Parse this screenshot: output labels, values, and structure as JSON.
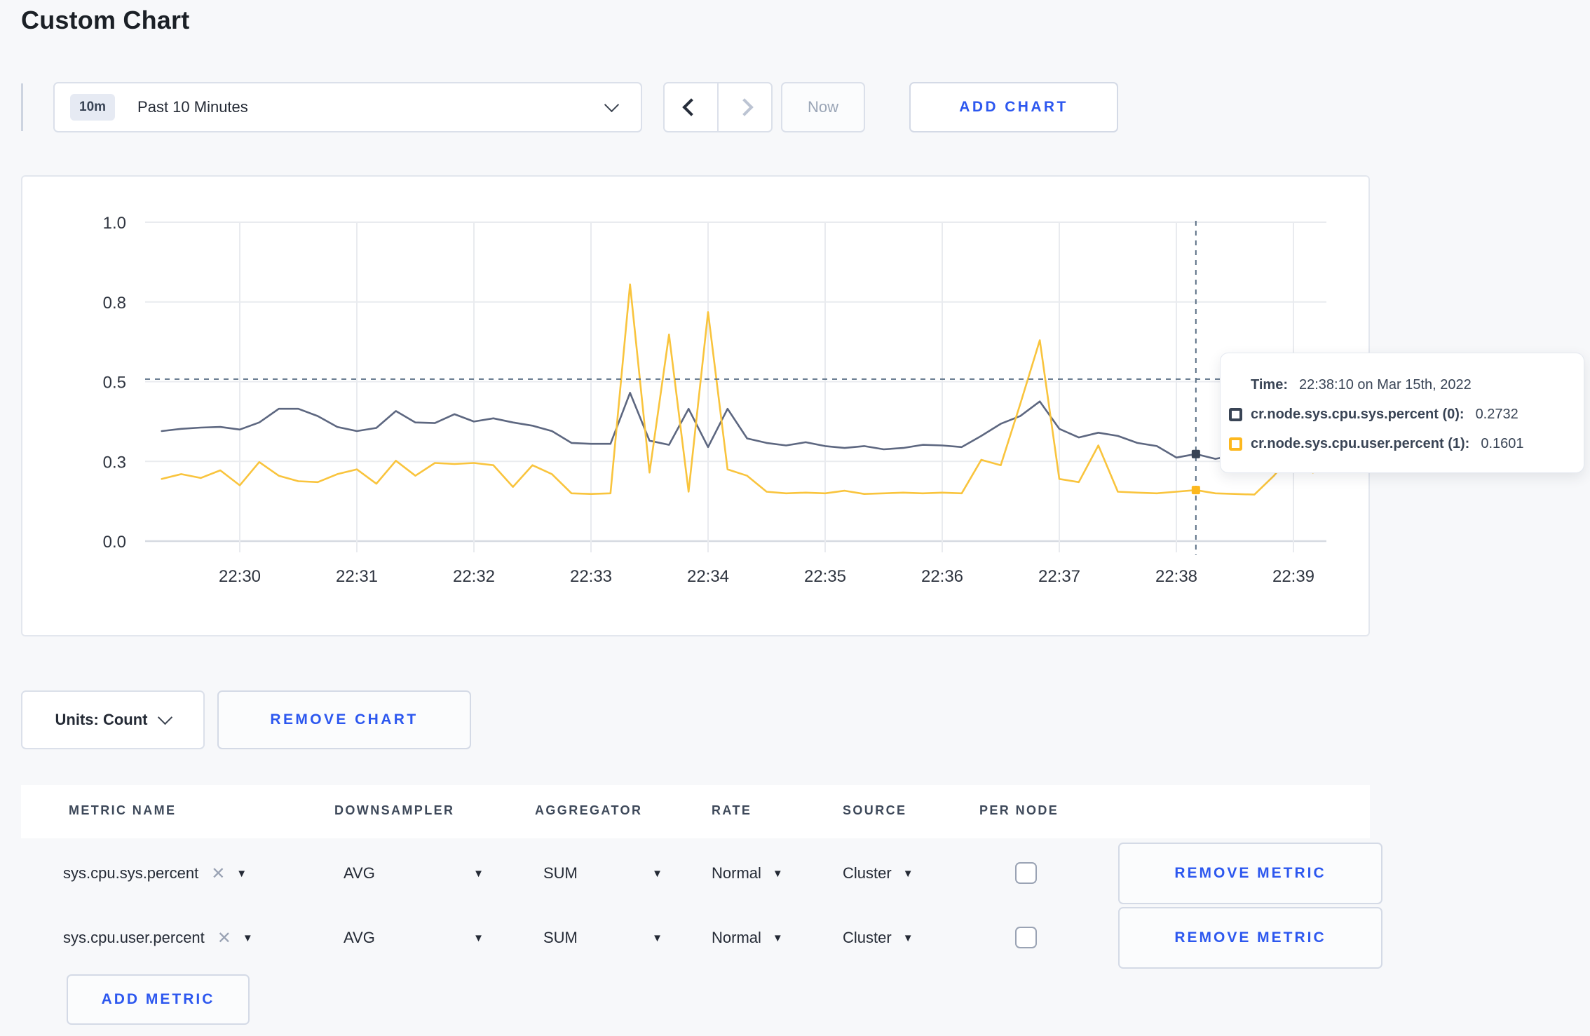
{
  "page": {
    "title": "Custom Chart"
  },
  "toolbar": {
    "time_range": {
      "badge": "10m",
      "label": "Past 10 Minutes"
    },
    "now_label": "Now",
    "add_chart_label": "ADD CHART"
  },
  "chart_data": {
    "type": "line",
    "title": "",
    "xlabel": "",
    "ylabel": "",
    "ylim": [
      0,
      1
    ],
    "grid": true,
    "legend_position": "tooltip-only",
    "x_tick_labels": [
      "22:30",
      "22:31",
      "22:32",
      "22:33",
      "22:34",
      "22:35",
      "22:36",
      "22:37",
      "22:38",
      "22:39"
    ],
    "y_ticks": [
      {
        "v": 0,
        "label": "0.0"
      },
      {
        "v": 0.25,
        "label": "0.3"
      },
      {
        "v": 0.5,
        "label": "0.5"
      },
      {
        "v": 0.75,
        "label": "0.8"
      },
      {
        "v": 1,
        "label": "1.0"
      }
    ],
    "x_start_offset_sec": -40,
    "x_step_sec": 10,
    "series": [
      {
        "name": "cr.node.sys.cpu.sys.percent",
        "line_color": "#5d6780",
        "marker_color": "#394455",
        "values": [
          0.345,
          0.352,
          0.356,
          0.358,
          0.35,
          0.372,
          0.415,
          0.415,
          0.392,
          0.358,
          0.345,
          0.355,
          0.408,
          0.372,
          0.37,
          0.398,
          0.375,
          0.385,
          0.372,
          0.362,
          0.345,
          0.308,
          0.305,
          0.305,
          0.465,
          0.315,
          0.302,
          0.415,
          0.295,
          0.415,
          0.322,
          0.308,
          0.3,
          0.31,
          0.298,
          0.292,
          0.298,
          0.288,
          0.292,
          0.302,
          0.3,
          0.295,
          0.33,
          0.368,
          0.392,
          0.438,
          0.352,
          0.325,
          0.34,
          0.33,
          0.308,
          0.298,
          0.262,
          0.2732,
          0.258,
          0.27,
          0.282,
          0.295,
          0.31,
          0.298,
          0.305
        ]
      },
      {
        "name": "cr.node.sys.cpu.user.percent",
        "line_color": "#f9c43d",
        "marker_color": "#fdb81e",
        "values": [
          0.195,
          0.21,
          0.198,
          0.222,
          0.175,
          0.248,
          0.205,
          0.188,
          0.185,
          0.21,
          0.225,
          0.18,
          0.252,
          0.205,
          0.245,
          0.242,
          0.245,
          0.238,
          0.17,
          0.238,
          0.21,
          0.15,
          0.148,
          0.15,
          0.805,
          0.215,
          0.648,
          0.155,
          0.718,
          0.225,
          0.205,
          0.155,
          0.15,
          0.152,
          0.15,
          0.158,
          0.148,
          0.15,
          0.152,
          0.15,
          0.152,
          0.15,
          0.255,
          0.238,
          0.43,
          0.63,
          0.195,
          0.185,
          0.3,
          0.155,
          0.152,
          0.15,
          0.155,
          0.1601,
          0.15,
          0.148,
          0.146,
          0.205,
          0.278,
          0.215,
          0.272
        ]
      }
    ],
    "crosshair": {
      "x_offset_sec": 490,
      "hover_y_value": 0.508,
      "point_values": [
        0.2732,
        0.1601
      ]
    }
  },
  "tooltip": {
    "time_label": "Time:",
    "time_value": "22:38:10 on Mar 15th, 2022",
    "series": [
      {
        "name": "cr.node.sys.cpu.sys.percent (0):",
        "value": "0.2732",
        "swatch_color": "#394455"
      },
      {
        "name": "cr.node.sys.cpu.user.percent (1):",
        "value": "0.1601",
        "swatch_color": "#fdb81e"
      }
    ]
  },
  "units_bar": {
    "units_label": "Units: Count",
    "remove_chart_label": "REMOVE CHART"
  },
  "metrics_table": {
    "headers": [
      "METRIC NAME",
      "DOWNSAMPLER",
      "AGGREGATOR",
      "RATE",
      "SOURCE",
      "PER NODE"
    ],
    "rows": [
      {
        "metric": "sys.cpu.sys.percent",
        "downsampler": "AVG",
        "aggregator": "SUM",
        "rate": "Normal",
        "source": "Cluster",
        "per_node_checked": false,
        "remove_label": "REMOVE METRIC"
      },
      {
        "metric": "sys.cpu.user.percent",
        "downsampler": "AVG",
        "aggregator": "SUM",
        "rate": "Normal",
        "source": "Cluster",
        "per_node_checked": false,
        "remove_label": "REMOVE METRIC"
      }
    ],
    "add_metric_label": "ADD METRIC"
  },
  "colors": {
    "accent_blue": "#2c57ef",
    "grid_line": "#e9ebef",
    "axis_line": "#d6dae1",
    "crosshair": "#5c7186",
    "axis_text": "#2f3540"
  }
}
